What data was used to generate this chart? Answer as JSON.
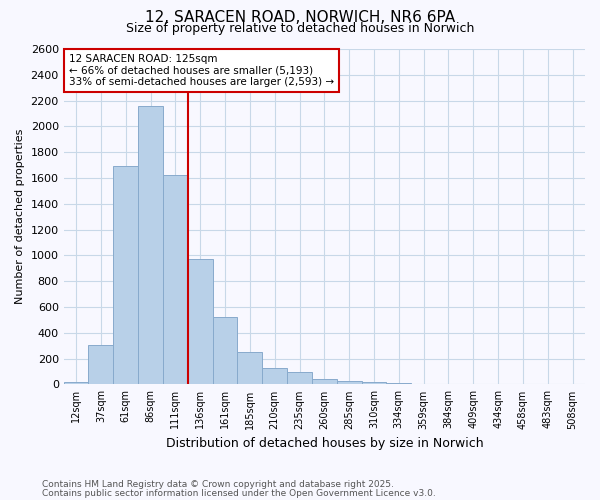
{
  "title1": "12, SARACEN ROAD, NORWICH, NR6 6PA",
  "title2": "Size of property relative to detached houses in Norwich",
  "xlabel": "Distribution of detached houses by size in Norwich",
  "ylabel": "Number of detached properties",
  "categories": [
    "12sqm",
    "37sqm",
    "61sqm",
    "86sqm",
    "111sqm",
    "136sqm",
    "161sqm",
    "185sqm",
    "210sqm",
    "235sqm",
    "260sqm",
    "285sqm",
    "310sqm",
    "334sqm",
    "359sqm",
    "384sqm",
    "409sqm",
    "434sqm",
    "458sqm",
    "483sqm",
    "508sqm"
  ],
  "values": [
    15,
    305,
    1690,
    2160,
    1620,
    975,
    520,
    250,
    130,
    100,
    40,
    30,
    15,
    8,
    5,
    3,
    3,
    3,
    3,
    3,
    3
  ],
  "bar_color": "#b8d0e8",
  "bar_edge_color": "#88aacc",
  "bg_color": "#f8f8ff",
  "grid_color": "#c8d8e8",
  "annotation_text_line1": "12 SARACEN ROAD: 125sqm",
  "annotation_text_line2": "← 66% of detached houses are smaller (5,193)",
  "annotation_text_line3": "33% of semi-detached houses are larger (2,593) →",
  "annotation_box_color": "#ffffff",
  "annotation_box_edge": "#cc0000",
  "vline_color": "#cc0000",
  "vline_x": 4.5,
  "footer1": "Contains HM Land Registry data © Crown copyright and database right 2025.",
  "footer2": "Contains public sector information licensed under the Open Government Licence v3.0.",
  "ylim": [
    0,
    2600
  ],
  "yticks": [
    0,
    200,
    400,
    600,
    800,
    1000,
    1200,
    1400,
    1600,
    1800,
    2000,
    2200,
    2400,
    2600
  ]
}
